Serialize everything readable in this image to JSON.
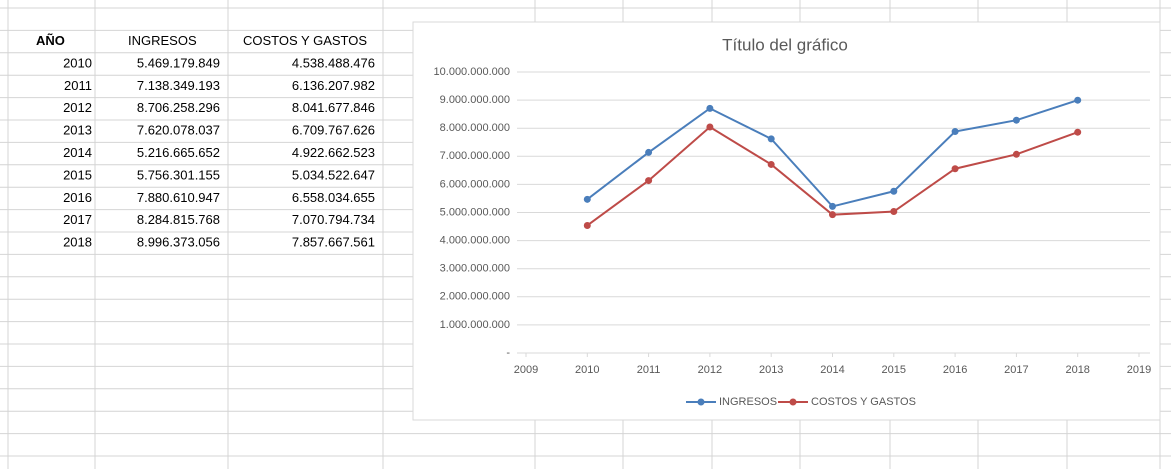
{
  "table": {
    "header": [
      "AÑO",
      "INGRESOS",
      "COSTOS Y GASTOS"
    ],
    "rows": [
      [
        "2010",
        "5.469.179.849",
        "4.538.488.476"
      ],
      [
        "2011",
        "7.138.349.193",
        "6.136.207.982"
      ],
      [
        "2012",
        "8.706.258.296",
        "8.041.677.846"
      ],
      [
        "2013",
        "7.620.078.037",
        "6.709.767.626"
      ],
      [
        "2014",
        "5.216.665.652",
        "4.922.662.523"
      ],
      [
        "2015",
        "5.756.301.155",
        "5.034.522.647"
      ],
      [
        "2016",
        "7.880.610.947",
        "6.558.034.655"
      ],
      [
        "2017",
        "8.284.815.768",
        "7.070.794.734"
      ],
      [
        "2018",
        "8.996.373.056",
        "7.857.667.561"
      ]
    ]
  },
  "chart_data": {
    "type": "line",
    "title": "Título del gráfico",
    "x": [
      2010,
      2011,
      2012,
      2013,
      2014,
      2015,
      2016,
      2017,
      2018
    ],
    "series": [
      {
        "name": "INGRESOS",
        "color": "#4a7ebb",
        "values": [
          5469179849,
          7138349193,
          8706258296,
          7620078037,
          5216665652,
          5756301155,
          7880610947,
          8284815768,
          8996373056
        ]
      },
      {
        "name": "COSTOS Y GASTOS",
        "color": "#be4b48",
        "values": [
          4538488476,
          6136207982,
          8041677846,
          6709767626,
          4922662523,
          5034522647,
          6558034655,
          7070794734,
          7857667561
        ]
      }
    ],
    "xlim": [
      2009,
      2019
    ],
    "xticks": [
      2009,
      2010,
      2011,
      2012,
      2013,
      2014,
      2015,
      2016,
      2017,
      2018,
      2019
    ],
    "ylim": [
      0,
      10000000000
    ],
    "yticks": [
      {
        "value": 0,
        "label": "-"
      },
      {
        "value": 1000000000,
        "label": "1.000.000.000"
      },
      {
        "value": 2000000000,
        "label": "2.000.000.000"
      },
      {
        "value": 3000000000,
        "label": "3.000.000.000"
      },
      {
        "value": 4000000000,
        "label": "4.000.000.000"
      },
      {
        "value": 5000000000,
        "label": "5.000.000.000"
      },
      {
        "value": 6000000000,
        "label": "6.000.000.000"
      },
      {
        "value": 7000000000,
        "label": "7.000.000.000"
      },
      {
        "value": 8000000000,
        "label": "8.000.000.000"
      },
      {
        "value": 9000000000,
        "label": "9.000.000.000"
      },
      {
        "value": 10000000000,
        "label": "10.000.000.000"
      }
    ],
    "grid": true,
    "legend": "bottom"
  }
}
